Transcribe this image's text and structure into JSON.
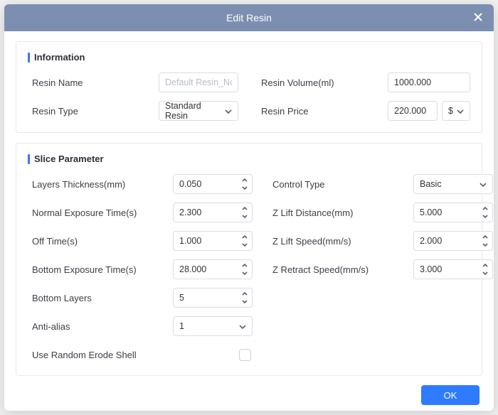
{
  "dialog": {
    "title": "Edit Resin",
    "ok": "OK"
  },
  "info": {
    "title": "Information",
    "resin_name_label": "Resin Name",
    "resin_name_placeholder": "Default Resin_Normal",
    "resin_name_value": "",
    "resin_type_label": "Resin Type",
    "resin_type_value": "Standard Resin",
    "resin_volume_label": "Resin Volume(ml)",
    "resin_volume_value": "1000.000",
    "resin_price_label": "Resin Price",
    "resin_price_value": "220.000",
    "currency": "$"
  },
  "slice": {
    "title": "Slice Parameter",
    "layers_thickness_label": "Layers Thickness(mm)",
    "layers_thickness_value": "0.050",
    "normal_exposure_label": "Normal Exposure Time(s)",
    "normal_exposure_value": "2.300",
    "off_time_label": "Off Time(s)",
    "off_time_value": "1.000",
    "bottom_exposure_label": "Bottom Exposure Time(s)",
    "bottom_exposure_value": "28.000",
    "bottom_layers_label": "Bottom Layers",
    "bottom_layers_value": "5",
    "anti_alias_label": "Anti-alias",
    "anti_alias_value": "1",
    "random_erode_label": "Use Random Erode Shell",
    "random_erode_checked": false,
    "control_type_label": "Control Type",
    "control_type_value": "Basic",
    "z_lift_distance_label": "Z Lift Distance(mm)",
    "z_lift_distance_value": "5.000",
    "z_lift_speed_label": "Z Lift Speed(mm/s)",
    "z_lift_speed_value": "2.000",
    "z_retract_speed_label": "Z Retract Speed(mm/s)",
    "z_retract_speed_value": "3.000"
  }
}
